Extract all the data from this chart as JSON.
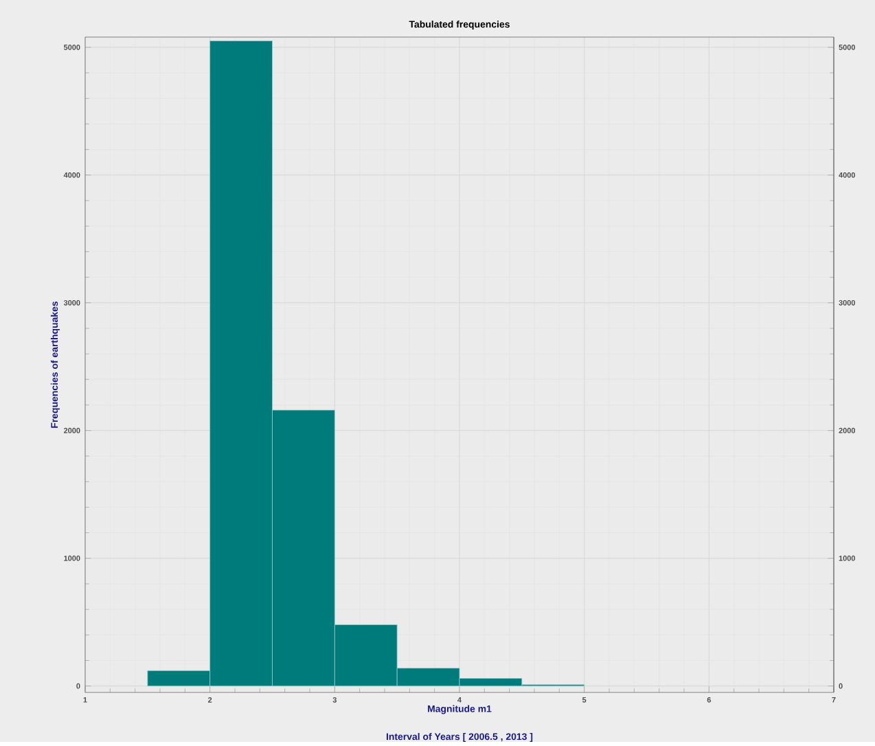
{
  "chart_data": {
    "type": "histogram",
    "title": "Tabulated frequencies",
    "xlabel": "Magnitude m1",
    "ylabel": "Frequencies of earthquakes",
    "annotations": [
      "Interval of Years [ 2006.5 , 2013 ]"
    ],
    "bins": [
      1.5,
      2,
      2.5,
      3,
      3.5,
      4,
      4.5,
      5
    ],
    "values": [
      120,
      5050,
      2160,
      480,
      140,
      60,
      10
    ],
    "color": "#007b7b",
    "xlim": [
      1,
      7
    ],
    "xticks": [
      1,
      2,
      3,
      4,
      5,
      6,
      7
    ],
    "ylim": [
      -50,
      5080
    ],
    "yticks": [
      0,
      1000,
      2000,
      3000,
      4000,
      5000
    ],
    "y2lim": [
      -50,
      5080
    ],
    "y2ticks": [
      0,
      1000,
      2000,
      3000,
      4000,
      5000
    ],
    "grid": true
  }
}
